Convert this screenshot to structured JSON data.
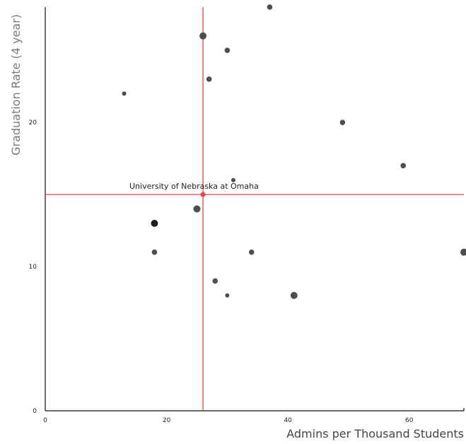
{
  "chart_data": {
    "type": "scatter",
    "xlabel": "Admins per Thousand Students",
    "ylabel": "Graduation Rate (4 year)",
    "xlim": [
      0,
      69
    ],
    "ylim": [
      0,
      28
    ],
    "x_ticks": [
      0,
      20,
      40,
      60
    ],
    "y_ticks": [
      0,
      10,
      20
    ],
    "grid": false,
    "points": [
      {
        "x": 37,
        "y": 28,
        "size": "small"
      },
      {
        "x": 26,
        "y": 26,
        "size": "medium"
      },
      {
        "x": 30,
        "y": 25,
        "size": "small"
      },
      {
        "x": 27,
        "y": 23,
        "size": "small"
      },
      {
        "x": 13,
        "y": 22,
        "size": "tiny"
      },
      {
        "x": 49,
        "y": 20,
        "size": "small"
      },
      {
        "x": 59,
        "y": 17,
        "size": "small"
      },
      {
        "x": 31,
        "y": 16,
        "size": "tiny"
      },
      {
        "x": 25,
        "y": 14,
        "size": "medium"
      },
      {
        "x": 18,
        "y": 13,
        "size": "medium",
        "color": "#111111"
      },
      {
        "x": 18,
        "y": 11,
        "size": "small"
      },
      {
        "x": 34,
        "y": 11,
        "size": "small"
      },
      {
        "x": 69,
        "y": 11,
        "size": "medium"
      },
      {
        "x": 28,
        "y": 9,
        "size": "small"
      },
      {
        "x": 30,
        "y": 8,
        "size": "tiny"
      },
      {
        "x": 41,
        "y": 8,
        "size": "medium"
      }
    ],
    "highlight": {
      "label": "University of Nebraska at Omaha",
      "x": 26,
      "y": 15,
      "color": "#e8474c"
    },
    "point_color": "#444444"
  }
}
